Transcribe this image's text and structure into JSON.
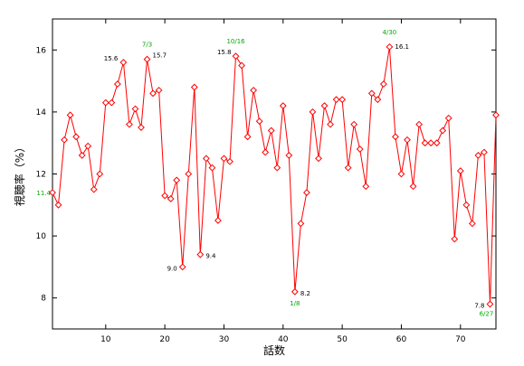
{
  "chart_data": {
    "type": "line",
    "title": "",
    "xlabel": "話数",
    "ylabel": "視聴率（%）",
    "xlim": [
      1,
      76
    ],
    "ylim": [
      7,
      17
    ],
    "x_ticks": [
      10,
      20,
      30,
      40,
      50,
      60,
      70
    ],
    "y_ticks": [
      8,
      10,
      12,
      14,
      16
    ],
    "grid": false,
    "legend": "none",
    "colors": {
      "line": "#ff0000",
      "marker": "#ff0000",
      "value_label": "#000000",
      "date_label": "#00aa00",
      "axes": "#000000"
    },
    "series": [
      {
        "x": [
          1,
          2,
          3,
          4,
          5,
          6,
          7,
          8,
          9,
          10,
          11,
          12,
          13,
          14,
          15,
          16,
          17,
          18,
          19,
          20,
          21,
          22,
          23,
          24,
          25,
          26,
          27,
          28,
          29,
          30,
          31,
          32,
          33,
          34,
          35,
          36,
          37,
          38,
          39,
          40,
          41,
          42,
          43,
          44,
          45,
          46,
          47,
          48,
          49,
          50,
          51,
          52,
          53,
          54,
          55,
          56,
          57,
          58,
          59,
          60,
          61,
          62,
          63,
          64,
          65,
          66,
          67,
          68,
          69,
          70,
          71,
          72,
          73,
          74,
          75,
          76
        ],
        "y": [
          11.4,
          11.0,
          13.1,
          13.9,
          13.2,
          12.6,
          12.9,
          11.5,
          12.0,
          14.3,
          14.3,
          14.9,
          15.6,
          13.6,
          14.1,
          13.5,
          15.7,
          14.6,
          14.7,
          11.3,
          11.2,
          11.8,
          9.0,
          12.0,
          14.8,
          9.4,
          12.5,
          12.2,
          10.5,
          12.5,
          12.4,
          15.8,
          15.5,
          13.2,
          14.7,
          13.7,
          12.7,
          13.4,
          12.2,
          14.2,
          12.6,
          8.2,
          10.4,
          11.4,
          14.0,
          12.5,
          14.2,
          13.6,
          14.4,
          14.4,
          12.2,
          13.6,
          12.8,
          11.6,
          14.6,
          14.4,
          14.9,
          16.1,
          13.2,
          12.0,
          13.1,
          11.6,
          13.6,
          13.0,
          13.0,
          13.0,
          13.4,
          13.8,
          9.9,
          12.1,
          11.0,
          10.4,
          12.6,
          12.7,
          7.8,
          13.9
        ]
      }
    ],
    "annotations": [
      {
        "x": 13,
        "y": 15.6,
        "text": "15.6",
        "kind": "value"
      },
      {
        "x": 17,
        "y": 15.7,
        "text": "15.7",
        "kind": "value"
      },
      {
        "x": 17,
        "y": 15.7,
        "text": "7/3",
        "kind": "date"
      },
      {
        "x": 32,
        "y": 15.8,
        "text": "15.8",
        "kind": "value"
      },
      {
        "x": 32,
        "y": 15.8,
        "text": "10/16",
        "kind": "date"
      },
      {
        "x": 58,
        "y": 16.1,
        "text": "16.1",
        "kind": "value"
      },
      {
        "x": 58,
        "y": 16.1,
        "text": "4/30",
        "kind": "date"
      },
      {
        "x": 1,
        "y": 11.4,
        "text": "11.4",
        "kind": "date"
      },
      {
        "x": 23,
        "y": 9.0,
        "text": "9.0",
        "kind": "value"
      },
      {
        "x": 26,
        "y": 9.4,
        "text": "9.4",
        "kind": "value"
      },
      {
        "x": 42,
        "y": 8.2,
        "text": "8.2",
        "kind": "value"
      },
      {
        "x": 42,
        "y": 8.2,
        "text": "1/8",
        "kind": "date"
      },
      {
        "x": 75,
        "y": 7.8,
        "text": "7.8",
        "kind": "value"
      },
      {
        "x": 75,
        "y": 7.8,
        "text": "6/27",
        "kind": "date"
      }
    ]
  }
}
